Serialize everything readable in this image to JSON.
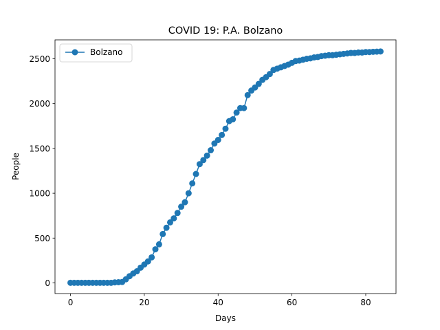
{
  "chart_data": {
    "type": "line",
    "title": "COVID 19: P.A. Bolzano",
    "xlabel": "Days",
    "ylabel": "People",
    "xlim": [
      -4.2,
      88.2
    ],
    "ylim": [
      -119,
      2711
    ],
    "xticks": [
      0,
      20,
      40,
      60,
      80
    ],
    "yticks": [
      0,
      500,
      1000,
      1500,
      2000,
      2500
    ],
    "grid": false,
    "legend_position": "upper-left",
    "series": [
      {
        "name": "Bolzano",
        "color": "#1f77b4",
        "marker": "circle",
        "x": [
          0,
          1,
          2,
          3,
          4,
          5,
          6,
          7,
          8,
          9,
          10,
          11,
          12,
          13,
          14,
          15,
          16,
          17,
          18,
          19,
          20,
          21,
          22,
          23,
          24,
          25,
          26,
          27,
          28,
          29,
          30,
          31,
          32,
          33,
          34,
          35,
          36,
          37,
          38,
          39,
          40,
          41,
          42,
          43,
          44,
          45,
          46,
          47,
          48,
          49,
          50,
          51,
          52,
          53,
          54,
          55,
          56,
          57,
          58,
          59,
          60,
          61,
          62,
          63,
          64,
          65,
          66,
          67,
          68,
          69,
          70,
          71,
          72,
          73,
          74,
          75,
          76,
          77,
          78,
          79,
          80,
          81,
          82,
          83,
          84
        ],
        "y": [
          1,
          1,
          1,
          1,
          1,
          1,
          1,
          1,
          1,
          1,
          1,
          1,
          6,
          8,
          10,
          40,
          75,
          105,
          130,
          170,
          205,
          240,
          285,
          375,
          430,
          545,
          615,
          675,
          720,
          780,
          850,
          900,
          1000,
          1110,
          1215,
          1325,
          1370,
          1420,
          1480,
          1555,
          1595,
          1650,
          1720,
          1805,
          1825,
          1900,
          1950,
          1950,
          2095,
          2145,
          2180,
          2220,
          2265,
          2295,
          2330,
          2375,
          2390,
          2405,
          2420,
          2435,
          2455,
          2475,
          2480,
          2490,
          2500,
          2505,
          2515,
          2520,
          2530,
          2535,
          2540,
          2540,
          2545,
          2550,
          2555,
          2560,
          2565,
          2565,
          2570,
          2570,
          2575,
          2575,
          2578,
          2580,
          2582
        ]
      }
    ]
  }
}
